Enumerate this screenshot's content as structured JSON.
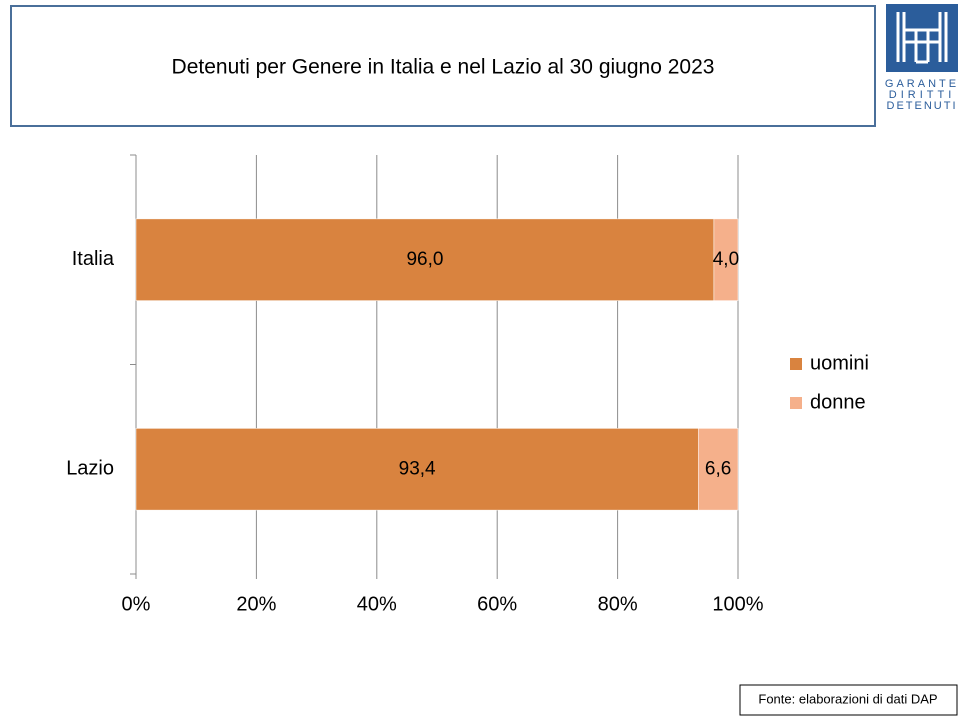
{
  "chart_data": {
    "type": "stacked_barh",
    "title": "Detenuti per Genere in Italia e nel Lazio al 30 giugno 2023",
    "categories": [
      "Italia",
      "Lazio"
    ],
    "series": [
      {
        "name": "uomini",
        "color": "#d9833f",
        "values": [
          96.0,
          93.4
        ],
        "value_labels": [
          "96,0",
          "93,4"
        ]
      },
      {
        "name": "donne",
        "color": "#f5b08b",
        "values": [
          4.0,
          6.6
        ],
        "value_labels": [
          "4,0",
          "6,6"
        ]
      }
    ],
    "xlim": [
      0,
      100
    ],
    "xticks": [
      {
        "value": 0,
        "label": "0%"
      },
      {
        "value": 20,
        "label": "20%"
      },
      {
        "value": 40,
        "label": "40%"
      },
      {
        "value": 60,
        "label": "60%"
      },
      {
        "value": 80,
        "label": "80%"
      },
      {
        "value": 100,
        "label": "100%"
      }
    ],
    "grid": true,
    "legend": "right",
    "source": "Fonte: elaborazioni di dati DAP",
    "logo": [
      "GARANTE",
      "DIRITTI",
      "DETENUTI"
    ]
  }
}
